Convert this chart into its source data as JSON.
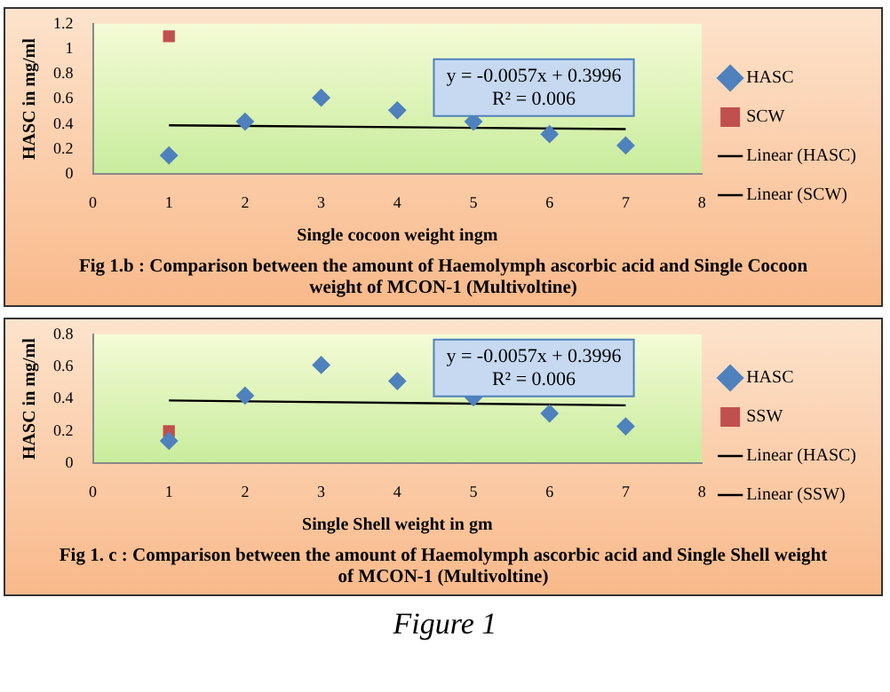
{
  "chart_data": [
    {
      "type": "scatter",
      "xlabel": "Single cocoon weight ingm",
      "ylabel": "HASC in mg/ml",
      "xlim": [
        0,
        8
      ],
      "xticks": [
        0,
        1,
        2,
        3,
        4,
        5,
        6,
        7,
        8
      ],
      "ylim": [
        0,
        1.2
      ],
      "yticks": [
        0,
        0.2,
        0.4,
        0.6,
        0.8,
        1,
        1.2
      ],
      "grid": false,
      "legend": "right",
      "annotations": [
        "y = -0.0057x + 0.3996",
        "R² = 0.006",
        "Fig 1.b :  Comparison between the amount  of Haemolymph ascorbic acid and Single Cocoon weight of MCON-1 (Multivoltine)"
      ],
      "series": [
        {
          "name": "HASC",
          "marker": "diamond",
          "color": "#4f81bd",
          "x": [
            1,
            2,
            3,
            4,
            5,
            6,
            7
          ],
          "values": [
            0.15,
            0.42,
            0.61,
            0.51,
            0.42,
            0.32,
            0.23
          ]
        },
        {
          "name": "SCW",
          "marker": "square",
          "color": "#c0504d",
          "x": [
            1
          ],
          "values": [
            1.1
          ]
        },
        {
          "name": "Linear (HASC)",
          "type": "line",
          "marker": "none",
          "color": "#000000",
          "x": [
            1,
            7
          ],
          "values": [
            0.39,
            0.36
          ]
        },
        {
          "name": "Linear (SCW)",
          "type": "line",
          "marker": "none",
          "color": "#000000"
        }
      ]
    },
    {
      "type": "scatter",
      "xlabel": "Single Shell weight in gm",
      "ylabel": "HASC in mg/ml",
      "xlim": [
        0,
        8
      ],
      "xticks": [
        0,
        1,
        2,
        3,
        4,
        5,
        6,
        7,
        8
      ],
      "ylim": [
        0,
        0.8
      ],
      "yticks": [
        0,
        0.2,
        0.4,
        0.6,
        0.8
      ],
      "grid": false,
      "legend": "right",
      "annotations": [
        "y = -0.0057x + 0.3996",
        "R² = 0.006",
        "Fig  1. c :  Comparison between the amount  of  Haemolymph  ascorbic acid and Single Shell weight of MCON-1 (Multivoltine)",
        "Figure 1"
      ],
      "series": [
        {
          "name": "HASC",
          "marker": "diamond",
          "color": "#4f81bd",
          "x": [
            1,
            2,
            3,
            4,
            5,
            6,
            7
          ],
          "values": [
            0.14,
            0.42,
            0.61,
            0.51,
            0.41,
            0.31,
            0.23
          ]
        },
        {
          "name": "SSW",
          "marker": "square",
          "color": "#c0504d",
          "x": [
            1
          ],
          "values": [
            0.2
          ]
        },
        {
          "name": "Linear (HASC)",
          "type": "line",
          "marker": "none",
          "color": "#000000",
          "x": [
            1,
            7
          ],
          "values": [
            0.39,
            0.36
          ]
        },
        {
          "name": "Linear (SSW)",
          "type": "line",
          "marker": "none",
          "color": "#000000"
        }
      ]
    }
  ]
}
